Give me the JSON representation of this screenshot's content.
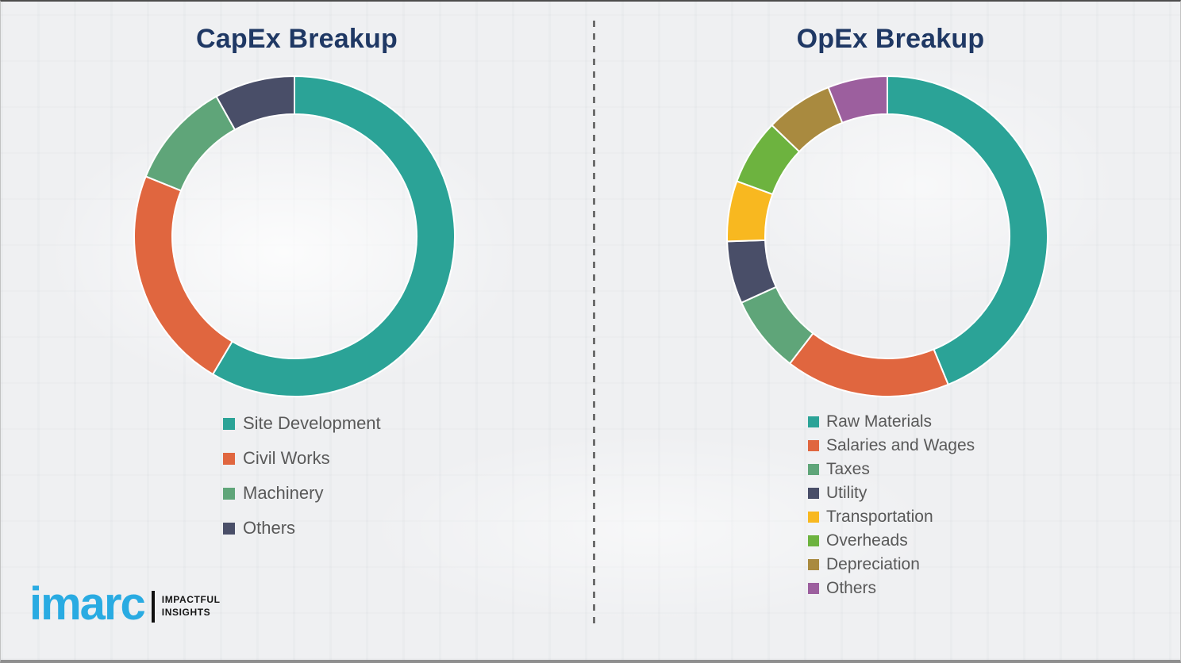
{
  "page": {
    "background_color": "#EFF0F2",
    "title_color": "#1F3864",
    "legend_text_color": "#595959"
  },
  "chart_data": [
    {
      "type": "pie",
      "variant": "donut",
      "title": "CapEx Breakup",
      "labels": [
        "Site Development",
        "Civil Works",
        "Machinery",
        "Others"
      ],
      "values": [
        58.5,
        22.6,
        10.8,
        8.1
      ],
      "colors": [
        "#2BA397",
        "#E0663F",
        "#5FA579",
        "#494E68"
      ],
      "units": "percent (estimated from arc angles)",
      "start_angle_deg": 0,
      "direction": "clockwise",
      "legend_position": "below-left",
      "data_labels_shown": false
    },
    {
      "type": "pie",
      "variant": "donut",
      "title": "OpEx Breakup",
      "labels": [
        "Raw Materials",
        "Salaries and Wages",
        "Taxes",
        "Utility",
        "Transportation",
        "Overheads",
        "Depreciation",
        "Others"
      ],
      "values": [
        43.8,
        16.6,
        7.8,
        6.3,
        6.1,
        6.6,
        6.8,
        6.0
      ],
      "colors": [
        "#2BA397",
        "#E0663F",
        "#5FA579",
        "#494E68",
        "#F8B820",
        "#6DB33F",
        "#A98A3F",
        "#9C5F9E"
      ],
      "units": "percent (estimated from arc angles)",
      "start_angle_deg": 0,
      "direction": "clockwise",
      "legend_position": "below-left",
      "data_labels_shown": false
    }
  ],
  "divider": {
    "style": "vertical dashed line",
    "color": "#6E6E6E"
  },
  "logo": {
    "brand": "imarc",
    "tagline_line1": "IMPACTFUL",
    "tagline_line2": "INSIGHTS",
    "brand_color": "#29ABE2"
  }
}
